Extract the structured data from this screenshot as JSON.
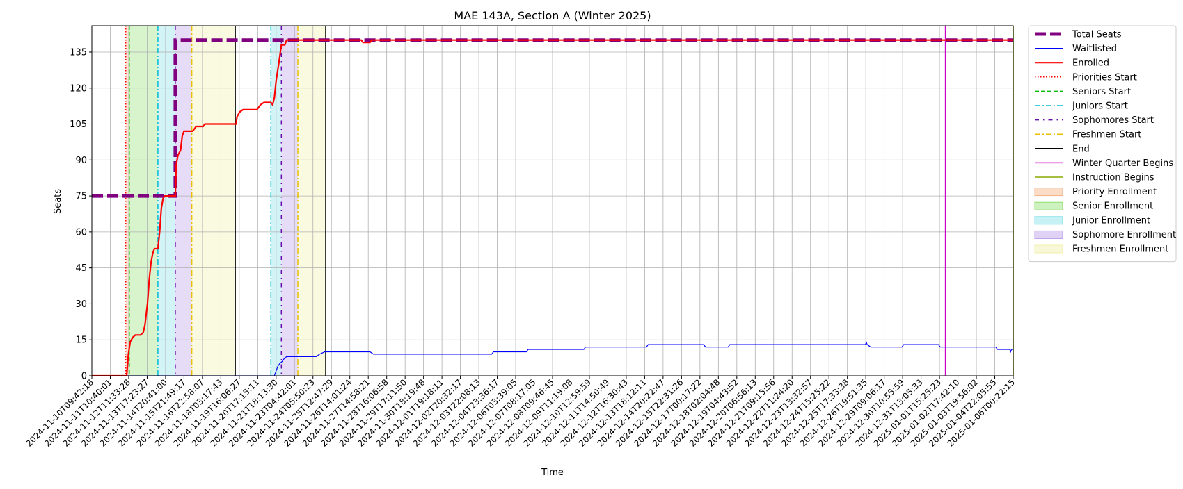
{
  "chart_data": {
    "type": "line",
    "title": "MAE 143A, Section A (Winter 2025)",
    "xlabel": "Time",
    "ylabel": "Seats",
    "ylim": [
      0,
      146
    ],
    "yticks": [
      0,
      15,
      30,
      45,
      60,
      75,
      90,
      105,
      120,
      135
    ],
    "grid": true,
    "legend_position": "outside-right",
    "x_tick_labels": [
      "2024-11-10T09:42:18",
      "2024-11-11T10:40:01",
      "2024-11-12T11:33:28",
      "2024-11-13T17:23:27",
      "2024-11-14T20:41:00",
      "2024-11-15T21:49:17",
      "2024-11-16T22:58:07",
      "2024-11-18T03:17:43",
      "2024-11-19T16:06:27",
      "2024-11-20T17:15:11",
      "2024-11-21T18:13:30",
      "2024-11-23T04:42:01",
      "2024-11-24T05:50:23",
      "2024-11-25T12:47:29",
      "2024-11-26T14:01:24",
      "2024-11-27T14:58:21",
      "2024-11-28T16:06:58",
      "2024-11-29T17:11:50",
      "2024-11-30T18:19:48",
      "2024-12-01T19:18:11",
      "2024-12-02T20:32:17",
      "2024-12-03T22:08:13",
      "2024-12-04T23:36:17",
      "2024-12-06T03:39:05",
      "2024-12-07T08:17:05",
      "2024-12-08T09:46:45",
      "2024-12-09T11:19:08",
      "2024-12-10T12:59:59",
      "2024-12-11T14:50:49",
      "2024-12-12T16:30:43",
      "2024-12-13T18:12:11",
      "2024-12-14T20:22:47",
      "2024-12-15T22:31:26",
      "2024-12-17T00:17:22",
      "2024-12-18T02:04:48",
      "2024-12-19T04:43:52",
      "2024-12-20T06:56:13",
      "2024-12-21T09:15:56",
      "2024-12-22T11:24:20",
      "2024-12-23T13:32:57",
      "2024-12-24T15:25:22",
      "2024-12-25T17:33:38",
      "2024-12-26T19:51:35",
      "2024-12-29T09:06:17",
      "2024-12-30T10:55:59",
      "2024-12-31T13:05:33",
      "2025-01-01T15:25:23",
      "2025-01-02T17:42:10",
      "2025-01-03T19:56:02",
      "2025-01-04T22:05:55",
      "2025-01-06T00:22:15"
    ],
    "x_range": [
      0,
      53
    ],
    "series": [
      {
        "name": "Total Seats",
        "color": "#800080",
        "style": "dashed-thick",
        "points": [
          [
            0,
            75
          ],
          [
            4.8,
            75
          ],
          [
            4.8,
            140
          ],
          [
            53,
            140
          ]
        ]
      },
      {
        "name": "Waitlisted",
        "color": "#0000ff",
        "style": "solid-thin",
        "points": [
          [
            0,
            0
          ],
          [
            10.5,
            0
          ],
          [
            10.6,
            2
          ],
          [
            10.7,
            4
          ],
          [
            10.8,
            5
          ],
          [
            10.95,
            6
          ],
          [
            11.05,
            7
          ],
          [
            11.2,
            8
          ],
          [
            12.9,
            8
          ],
          [
            13.1,
            9
          ],
          [
            13.4,
            10
          ],
          [
            16.0,
            10
          ],
          [
            16.2,
            9
          ],
          [
            23.0,
            9
          ],
          [
            23.1,
            10
          ],
          [
            25.0,
            10
          ],
          [
            25.1,
            11
          ],
          [
            28.3,
            11
          ],
          [
            28.4,
            12
          ],
          [
            31.9,
            12
          ],
          [
            32.0,
            13
          ],
          [
            35.2,
            13
          ],
          [
            35.3,
            12
          ],
          [
            36.6,
            12
          ],
          [
            36.7,
            13
          ],
          [
            44.5,
            13
          ],
          [
            44.55,
            14
          ],
          [
            44.6,
            13
          ],
          [
            44.8,
            12
          ],
          [
            46.6,
            12
          ],
          [
            46.7,
            13
          ],
          [
            48.7,
            13
          ],
          [
            48.8,
            12
          ],
          [
            52.0,
            12
          ],
          [
            52.1,
            11
          ],
          [
            52.8,
            11
          ],
          [
            52.85,
            10
          ],
          [
            52.9,
            11
          ],
          [
            53,
            11
          ],
          [
            53,
            10
          ]
        ]
      },
      {
        "name": "Enrolled",
        "color": "#ff0000",
        "style": "solid-thick",
        "points": [
          [
            0,
            0
          ],
          [
            2.0,
            0
          ],
          [
            2.1,
            9
          ],
          [
            2.2,
            14
          ],
          [
            2.35,
            16
          ],
          [
            2.5,
            17
          ],
          [
            2.8,
            17
          ],
          [
            2.95,
            18
          ],
          [
            3.05,
            21
          ],
          [
            3.2,
            30
          ],
          [
            3.3,
            40
          ],
          [
            3.4,
            47
          ],
          [
            3.5,
            51
          ],
          [
            3.6,
            53
          ],
          [
            3.8,
            53
          ],
          [
            3.9,
            60
          ],
          [
            4.0,
            70
          ],
          [
            4.1,
            74
          ],
          [
            4.2,
            75
          ],
          [
            4.8,
            75
          ],
          [
            4.85,
            88
          ],
          [
            4.95,
            92
          ],
          [
            5.1,
            94
          ],
          [
            5.2,
            100
          ],
          [
            5.3,
            102
          ],
          [
            5.8,
            102
          ],
          [
            5.9,
            103
          ],
          [
            6.0,
            104
          ],
          [
            6.4,
            104
          ],
          [
            6.5,
            105
          ],
          [
            8.3,
            105
          ],
          [
            8.35,
            108
          ],
          [
            8.5,
            110
          ],
          [
            8.7,
            111
          ],
          [
            9.5,
            111
          ],
          [
            9.7,
            113
          ],
          [
            9.9,
            114
          ],
          [
            10.3,
            114
          ],
          [
            10.4,
            113
          ],
          [
            10.5,
            116
          ],
          [
            10.6,
            123
          ],
          [
            10.75,
            130
          ],
          [
            10.9,
            138
          ],
          [
            11.1,
            138
          ],
          [
            11.2,
            140
          ],
          [
            15.5,
            140
          ],
          [
            15.6,
            139
          ],
          [
            16.0,
            139
          ],
          [
            16.1,
            140
          ],
          [
            53,
            140
          ]
        ]
      }
    ],
    "vertical_lines": [
      {
        "name": "Priorities Start",
        "color": "#ff0000",
        "style": "dotted",
        "x": [
          1.95
        ]
      },
      {
        "name": "Seniors Start",
        "color": "#00bb00",
        "style": "dashed",
        "x": [
          2.15
        ]
      },
      {
        "name": "Juniors Start",
        "color": "#00bcd4",
        "style": "dashdot",
        "x": [
          3.8,
          10.3
        ]
      },
      {
        "name": "Sophomores Start",
        "color": "#6a0dad",
        "style": "loosedashdot",
        "x": [
          4.8,
          10.9
        ]
      },
      {
        "name": "Freshmen Start",
        "color": "#e8c000",
        "style": "dashdot",
        "x": [
          5.75,
          11.85
        ]
      },
      {
        "name": "End",
        "color": "#000000",
        "style": "solid",
        "x": [
          8.25,
          13.45
        ]
      },
      {
        "name": "Winter Quarter Begins",
        "color": "#cc00cc",
        "style": "solid",
        "x": [
          49.1
        ]
      },
      {
        "name": "Instruction Begins",
        "color": "#88aa00",
        "style": "solid",
        "x": [
          53
        ]
      }
    ],
    "shaded_regions": [
      {
        "name": "Priority Enrollment",
        "color": "#f4b183",
        "spans": [
          [
            1.95,
            2.15
          ]
        ]
      },
      {
        "name": "Senior Enrollment",
        "color": "#90e070",
        "spans": [
          [
            2.15,
            3.8
          ]
        ]
      },
      {
        "name": "Junior Enrollment",
        "color": "#80e0e8",
        "spans": [
          [
            3.8,
            4.8
          ],
          [
            10.3,
            10.9
          ]
        ]
      },
      {
        "name": "Sophomore Enrollment",
        "color": "#b89ce8",
        "spans": [
          [
            4.8,
            5.75
          ],
          [
            10.9,
            11.85
          ]
        ]
      },
      {
        "name": "Freshmen Enrollment",
        "color": "#f0f0a8",
        "spans": [
          [
            5.75,
            8.25
          ],
          [
            11.85,
            13.45
          ]
        ]
      }
    ],
    "legend": [
      {
        "label": "Total Seats",
        "kind": "line",
        "color": "#800080",
        "style": "dashed-thick"
      },
      {
        "label": "Waitlisted",
        "kind": "line",
        "color": "#0000ff",
        "style": "solid-thin"
      },
      {
        "label": "Enrolled",
        "kind": "line",
        "color": "#ff0000",
        "style": "solid-thick"
      },
      {
        "label": "Priorities Start",
        "kind": "line",
        "color": "#ff0000",
        "style": "dotted"
      },
      {
        "label": "Seniors Start",
        "kind": "line",
        "color": "#00bb00",
        "style": "dashed"
      },
      {
        "label": "Juniors Start",
        "kind": "line",
        "color": "#00bcd4",
        "style": "dashdot"
      },
      {
        "label": "Sophomores Start",
        "kind": "line",
        "color": "#6a0dad",
        "style": "loosedashdot"
      },
      {
        "label": "Freshmen Start",
        "kind": "line",
        "color": "#e8c000",
        "style": "dashdot"
      },
      {
        "label": "End",
        "kind": "line",
        "color": "#000000",
        "style": "solid"
      },
      {
        "label": "Winter Quarter Begins",
        "kind": "line",
        "color": "#cc00cc",
        "style": "solid"
      },
      {
        "label": "Instruction Begins",
        "kind": "line",
        "color": "#88aa00",
        "style": "solid"
      },
      {
        "label": "Priority Enrollment",
        "kind": "patch",
        "color": "#f4b183"
      },
      {
        "label": "Senior Enrollment",
        "kind": "patch",
        "color": "#90e070"
      },
      {
        "label": "Junior Enrollment",
        "kind": "patch",
        "color": "#80e0e8"
      },
      {
        "label": "Sophomore Enrollment",
        "kind": "patch",
        "color": "#b89ce8"
      },
      {
        "label": "Freshmen Enrollment",
        "kind": "patch",
        "color": "#f0f0a8"
      }
    ]
  }
}
